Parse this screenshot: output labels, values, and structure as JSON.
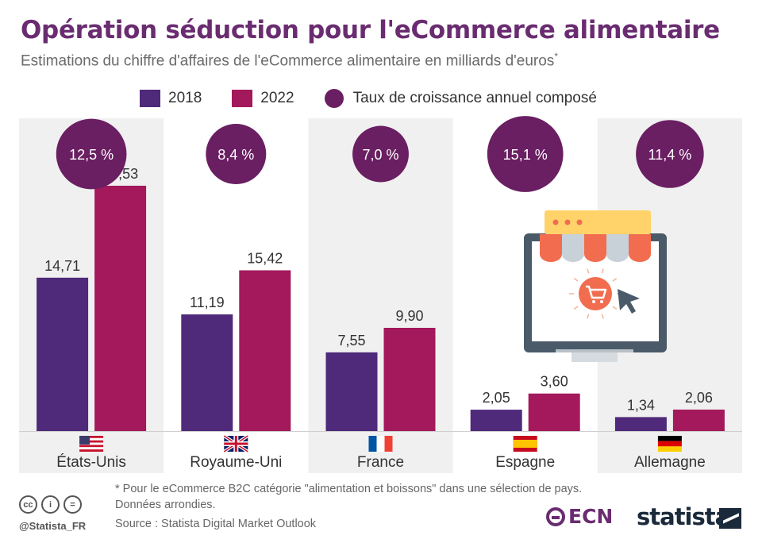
{
  "header": {
    "title": "Opération séduction pour l'eCommerce alimentaire",
    "subtitle": "Estimations du chiffre d'affaires de l'eCommerce alimentaire en milliards d'euros",
    "subtitle_mark": "*"
  },
  "legend": {
    "items": [
      "2018",
      "2022",
      "Taux de croissance annuel composé"
    ]
  },
  "colors": {
    "series_2018": "#4f2a7a",
    "series_2022": "#a3195b",
    "cagr": "#6a1f62",
    "panel": "#f0f0f0",
    "title": "#6a2c70"
  },
  "chart_data": {
    "type": "bar",
    "title": "Opération séduction pour l'eCommerce alimentaire",
    "subtitle": "Estimations du chiffre d'affaires de l'eCommerce alimentaire en milliards d'euros*",
    "categories": [
      "États-Unis",
      "Royaume-Uni",
      "France",
      "Espagne",
      "Allemagne"
    ],
    "flags": [
      "flag-us-icon",
      "flag-uk-icon",
      "flag-fr-icon",
      "flag-es-icon",
      "flag-de-icon"
    ],
    "series": [
      {
        "name": "2018",
        "values": [
          14.71,
          11.19,
          7.55,
          2.05,
          1.34
        ],
        "labels": [
          "14,71",
          "11,19",
          "7,55",
          "2,05",
          "1,34"
        ]
      },
      {
        "name": "2022",
        "values": [
          23.53,
          15.42,
          9.9,
          3.6,
          2.06
        ],
        "labels": [
          "23,53",
          "15,42",
          "9,90",
          "3,60",
          "2,06"
        ]
      }
    ],
    "cagr": {
      "name": "Taux de croissance annuel composé",
      "values": [
        12.5,
        8.4,
        7.0,
        15.1,
        11.4
      ],
      "labels": [
        "12,5 %",
        "8,4 %",
        "7,0 %",
        "15,1 %",
        "11,4 %"
      ]
    },
    "ylim": [
      0,
      30
    ],
    "grid": false,
    "legend_position": "top"
  },
  "illustration": {
    "name": "online-grocery-shop-illustration"
  },
  "footer": {
    "footnote_line1": "* Pour le eCommerce B2C catégorie \"alimentation et boissons\" dans une sélection de pays.",
    "footnote_line2": "Données arrondies.",
    "source": "Source : Statista Digital Market Outlook",
    "handle": "@Statista_FR",
    "cc_icons": [
      "cc-icon",
      "attribution-icon",
      "no-derivatives-icon"
    ],
    "cc_glyphs": [
      "cc",
      "i",
      "="
    ],
    "partner_logo": "ECN",
    "brand_logo": "statista"
  }
}
